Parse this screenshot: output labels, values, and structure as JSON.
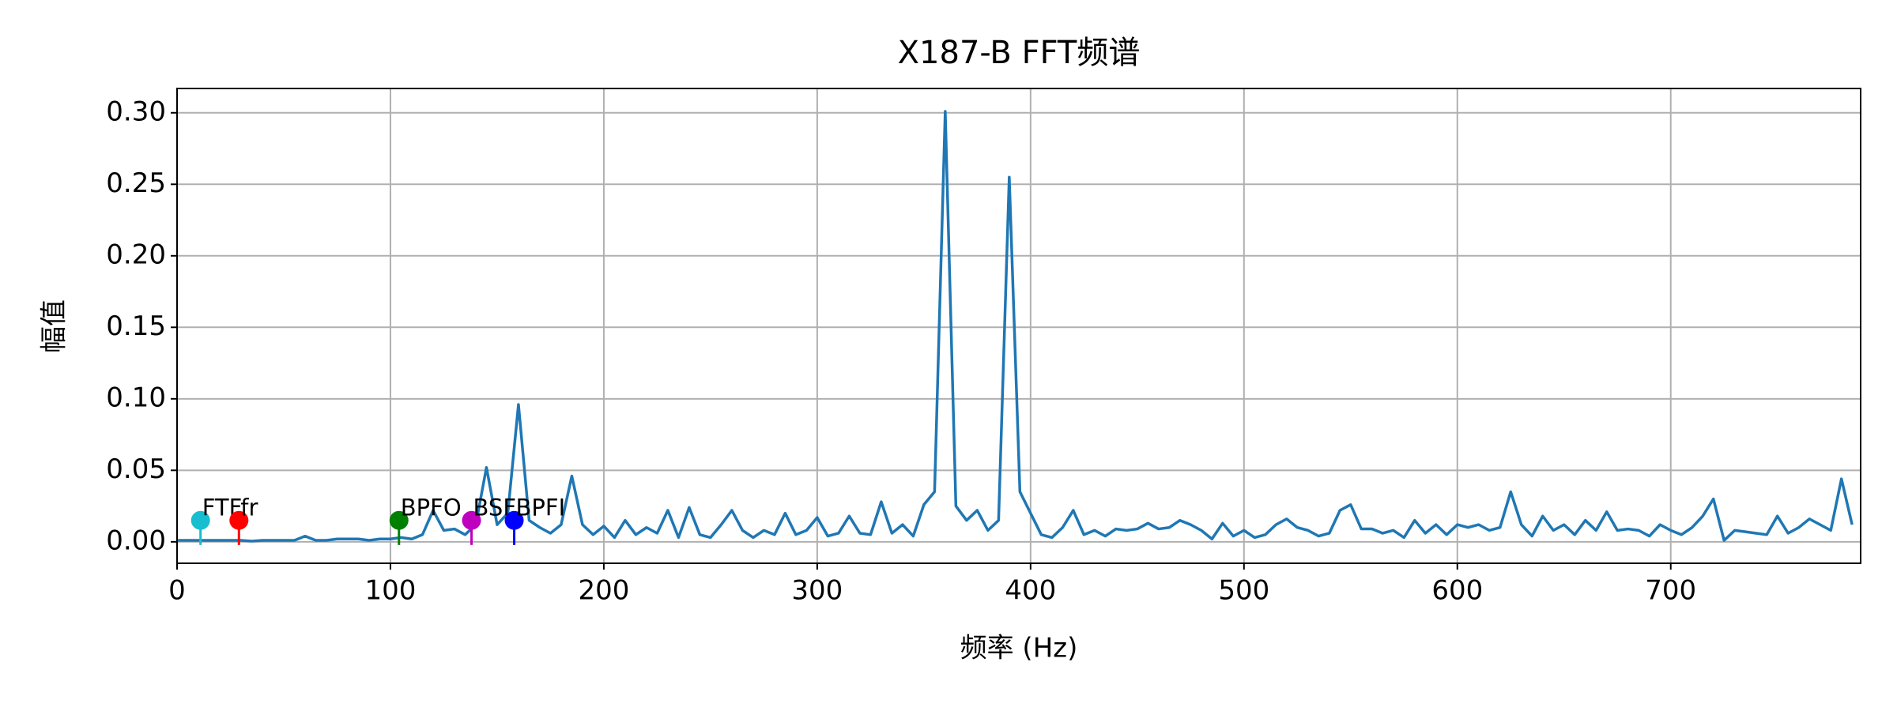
{
  "chart_data": {
    "type": "line",
    "title": "X187-B FFT频谱",
    "xlabel": "频率 (Hz)",
    "ylabel": "幅值",
    "color": "#1f77b4",
    "grid": true,
    "xlim": [
      0,
      789
    ],
    "ylim": [
      -0.015,
      0.317
    ],
    "xticks": [
      0,
      100,
      200,
      300,
      400,
      500,
      600,
      700
    ],
    "yticks": [
      {
        "value": 0,
        "label": "0.00"
      },
      {
        "value": 0.05,
        "label": "0.05"
      },
      {
        "value": 0.1,
        "label": "0.10"
      },
      {
        "value": 0.15,
        "label": "0.15"
      },
      {
        "value": 0.2,
        "label": "0.20"
      },
      {
        "value": 0.25,
        "label": "0.25"
      },
      {
        "value": 0.3,
        "label": "0.30"
      }
    ],
    "x": [
      0,
      5,
      10,
      15,
      20,
      25,
      30,
      35,
      40,
      45,
      50,
      55,
      60,
      65,
      70,
      75,
      80,
      85,
      90,
      95,
      100,
      105,
      110,
      115,
      120,
      125,
      130,
      135,
      140,
      145,
      150,
      155,
      160,
      165,
      170,
      175,
      180,
      185,
      190,
      195,
      200,
      205,
      210,
      215,
      220,
      225,
      230,
      235,
      240,
      245,
      250,
      255,
      260,
      265,
      270,
      275,
      280,
      285,
      290,
      295,
      300,
      305,
      310,
      315,
      320,
      325,
      330,
      335,
      340,
      345,
      350,
      355,
      360,
      365,
      370,
      375,
      380,
      385,
      390,
      395,
      400,
      405,
      410,
      415,
      420,
      425,
      430,
      435,
      440,
      445,
      450,
      455,
      460,
      465,
      470,
      475,
      480,
      485,
      490,
      495,
      500,
      505,
      510,
      515,
      520,
      525,
      530,
      535,
      540,
      545,
      550,
      555,
      560,
      565,
      570,
      575,
      580,
      585,
      590,
      595,
      600,
      605,
      610,
      615,
      620,
      625,
      630,
      635,
      640,
      645,
      650,
      655,
      660,
      665,
      670,
      675,
      680,
      685,
      690,
      695,
      700,
      705,
      710,
      715,
      720,
      725,
      730,
      735,
      740,
      745,
      750,
      755,
      760,
      765,
      770,
      775,
      780,
      785
    ],
    "values": [
      0.001,
      0.001,
      0.001,
      0.001,
      0.001,
      0.001,
      0.001,
      0.0005,
      0.001,
      0.001,
      0.001,
      0.001,
      0.004,
      0.001,
      0.001,
      0.002,
      0.002,
      0.002,
      0.001,
      0.002,
      0.002,
      0.003,
      0.002,
      0.005,
      0.022,
      0.008,
      0.009,
      0.005,
      0.012,
      0.052,
      0.012,
      0.02,
      0.096,
      0.015,
      0.01,
      0.006,
      0.012,
      0.046,
      0.012,
      0.005,
      0.011,
      0.003,
      0.015,
      0.005,
      0.01,
      0.006,
      0.022,
      0.003,
      0.024,
      0.005,
      0.003,
      0.012,
      0.022,
      0.008,
      0.003,
      0.008,
      0.005,
      0.02,
      0.005,
      0.008,
      0.017,
      0.004,
      0.006,
      0.018,
      0.006,
      0.005,
      0.028,
      0.006,
      0.012,
      0.004,
      0.026,
      0.035,
      0.301,
      0.025,
      0.015,
      0.022,
      0.008,
      0.015,
      0.255,
      0.035,
      0.02,
      0.005,
      0.003,
      0.01,
      0.022,
      0.005,
      0.008,
      0.004,
      0.009,
      0.008,
      0.009,
      0.013,
      0.009,
      0.01,
      0.015,
      0.012,
      0.008,
      0.002,
      0.013,
      0.004,
      0.008,
      0.003,
      0.005,
      0.012,
      0.016,
      0.01,
      0.008,
      0.004,
      0.006,
      0.022,
      0.026,
      0.009,
      0.009,
      0.006,
      0.008,
      0.003,
      0.015,
      0.006,
      0.012,
      0.005,
      0.012,
      0.01,
      0.012,
      0.008,
      0.01,
      0.035,
      0.012,
      0.004,
      0.018,
      0.008,
      0.012,
      0.005,
      0.015,
      0.008,
      0.021,
      0.008,
      0.009,
      0.008,
      0.004,
      0.012,
      0.008,
      0.005,
      0.01,
      0.018,
      0.03,
      0.001,
      0.008,
      0.007,
      0.006,
      0.005,
      0.018,
      0.006,
      0.01,
      0.016,
      0.012,
      0.008,
      0.044,
      0.012
    ],
    "markers": [
      {
        "name": "FTF",
        "x": 11,
        "value": 0.015,
        "color": "#17becf"
      },
      {
        "name": "fr",
        "x": 29,
        "value": 0.015,
        "color": "#ff0000"
      },
      {
        "name": "BPFO",
        "x": 104,
        "value": 0.015,
        "color": "#008000"
      },
      {
        "name": "BSF",
        "x": 138,
        "value": 0.015,
        "color": "#bf00bf"
      },
      {
        "name": "BPFI",
        "x": 158,
        "value": 0.015,
        "color": "#0000ff"
      }
    ]
  }
}
